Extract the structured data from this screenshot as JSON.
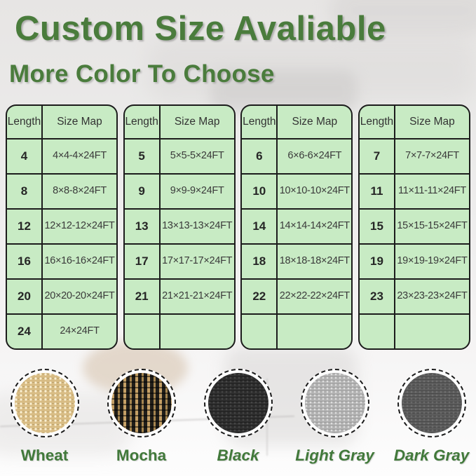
{
  "header": {
    "title": "Custom Size Avaliable",
    "subtitle": "More Color To Choose"
  },
  "colors": {
    "accent_green": "#4a7c3c",
    "swatch_label_green": "#41793a",
    "table_fill_green": "#c8ebc4",
    "table_border": "#1c1c1c"
  },
  "size_tables": {
    "column_headers": [
      "Length",
      "Size Map"
    ],
    "tables": [
      {
        "rows": [
          [
            "4",
            "4×4-4×24FT"
          ],
          [
            "8",
            "8×8-8×24FT"
          ],
          [
            "12",
            "12×12-12×24FT"
          ],
          [
            "16",
            "16×16-16×24FT"
          ],
          [
            "20",
            "20×20-20×24FT"
          ],
          [
            "24",
            "24×24FT"
          ]
        ]
      },
      {
        "rows": [
          [
            "5",
            "5×5-5×24FT"
          ],
          [
            "9",
            "9×9-9×24FT"
          ],
          [
            "13",
            "13×13-13×24FT"
          ],
          [
            "17",
            "17×17-17×24FT"
          ],
          [
            "21",
            "21×21-21×24FT"
          ],
          [
            "",
            ""
          ]
        ]
      },
      {
        "rows": [
          [
            "6",
            "6×6-6×24FT"
          ],
          [
            "10",
            "10×10-10×24FT"
          ],
          [
            "14",
            "14×14-14×24FT"
          ],
          [
            "18",
            "18×18-18×24FT"
          ],
          [
            "22",
            "22×22-22×24FT"
          ],
          [
            "",
            ""
          ]
        ]
      },
      {
        "rows": [
          [
            "7",
            "7×7-7×24FT"
          ],
          [
            "11",
            "11×11-11×24FT"
          ],
          [
            "15",
            "15×15-15×24FT"
          ],
          [
            "19",
            "19×19-19×24FT"
          ],
          [
            "23",
            "23×23-23×24FT"
          ],
          [
            "",
            ""
          ]
        ]
      }
    ]
  },
  "color_swatches": [
    {
      "name": "Wheat",
      "tex": "wheat",
      "base_color": "#d8bc84",
      "italic": false
    },
    {
      "name": "Mocha",
      "tex": "mocha",
      "base_color": "#c5a066",
      "italic": false
    },
    {
      "name": "Black",
      "tex": "black",
      "base_color": "#2e2e2e",
      "italic": true
    },
    {
      "name": "Light Gray",
      "tex": "light-gray",
      "base_color": "#b2b2b2",
      "italic": true
    },
    {
      "name": "Dark Gray",
      "tex": "dark-gray",
      "base_color": "#5b5b5b",
      "italic": true
    }
  ]
}
